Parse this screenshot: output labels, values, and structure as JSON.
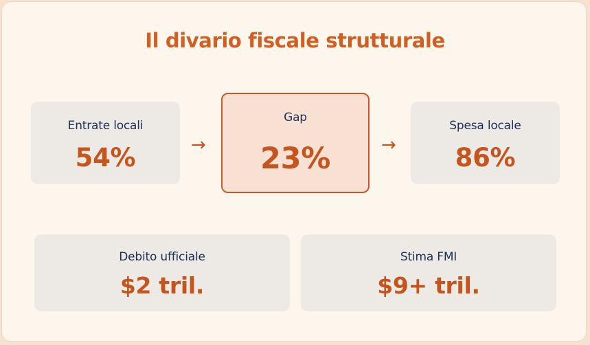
{
  "title": "Il divario fiscale strutturale",
  "flow": {
    "entrate": {
      "label": "Entrate locali",
      "value": "54%"
    },
    "gap": {
      "label": "Gap",
      "value": "23%"
    },
    "spesa": {
      "label": "Spesa locale",
      "value": "86%"
    },
    "arrow_glyph": "→"
  },
  "debt": {
    "ufficiale": {
      "label": "Debito ufficiale",
      "value": "$2 tril."
    },
    "fmi": {
      "label": "Stima FMI",
      "value": "$9+ tril."
    }
  },
  "colors": {
    "accent": "#cf5f22",
    "value": "#c4551f",
    "label": "#1f2f55",
    "card": "#edeae5",
    "highlight_card": "#f8e0d2",
    "background": "#fdf6ec"
  }
}
